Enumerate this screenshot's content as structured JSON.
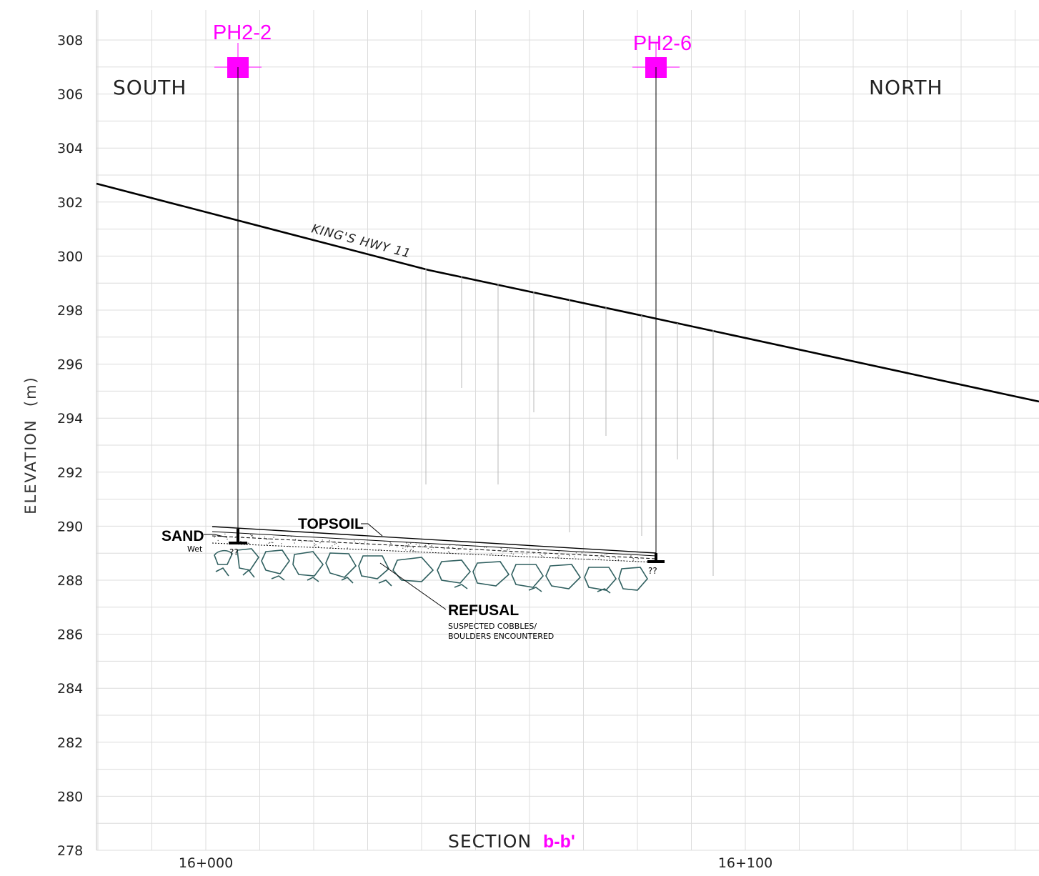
{
  "chart_data": {
    "type": "cross-section",
    "y_axis": {
      "label": "ELEVATION (m)",
      "range": [
        278,
        308
      ],
      "ticks": [
        "278",
        "280",
        "282",
        "284",
        "286",
        "288",
        "290",
        "292",
        "294",
        "296",
        "298",
        "300",
        "302",
        "304",
        "306",
        "308"
      ]
    },
    "x_axis": {
      "ticks": [
        {
          "chainage_m": 16000,
          "label": "16+000"
        },
        {
          "chainage_m": 16100,
          "label": "16+100"
        }
      ]
    },
    "directions": {
      "left": "SOUTH",
      "right": "NORTH"
    },
    "ground_surface": {
      "label": "KING'S HWY 11",
      "points": [
        [
          15980,
          302.7
        ],
        [
          16025,
          301.3
        ],
        [
          16080,
          299.2
        ],
        [
          16120,
          296.9
        ],
        [
          16155,
          294.6
        ]
      ]
    },
    "boreholes": [
      {
        "id": "PH2-2",
        "chainage_m": 16006,
        "top_elev": 307.0,
        "bottom_elev": 289.4,
        "note": "??"
      },
      {
        "id": "PH2-6",
        "chainage_m": 16083,
        "top_elev": 307.0,
        "bottom_elev": 288.7,
        "note": "??"
      }
    ],
    "strata": [
      {
        "name": "TOPSOIL",
        "top_left": 290.0,
        "top_right": 289.0
      },
      {
        "name": "SAND",
        "note": "Wet",
        "top_left": 289.8,
        "top_right": 288.9
      },
      {
        "name": "REFUSAL",
        "note": "SUSPECTED COBBLES/ BOULDERS ENCOUNTERED"
      }
    ],
    "title": "SECTION b-b'"
  },
  "labels": {
    "bh1": "PH2-2",
    "bh2": "PH2-6",
    "south": "SOUTH",
    "north": "NORTH",
    "road": "KING'S HWY 11",
    "topsoil": "TOPSOIL",
    "sand": "SAND",
    "sand_note": "Wet",
    "unknown1": "??",
    "unknown2": "??",
    "refusal": "REFUSAL",
    "refusal_note_1": "SUSPECTED COBBLES/",
    "refusal_note_2": "BOULDERS ENCOUNTERED",
    "ylabel": "ELEVATION  (m)",
    "section_word": "SECTION",
    "section_id": "b-b'"
  },
  "colors": {
    "borehole": "#ff00ff",
    "refusal": "#2f5f5f",
    "grid": "#dcdcdc"
  }
}
